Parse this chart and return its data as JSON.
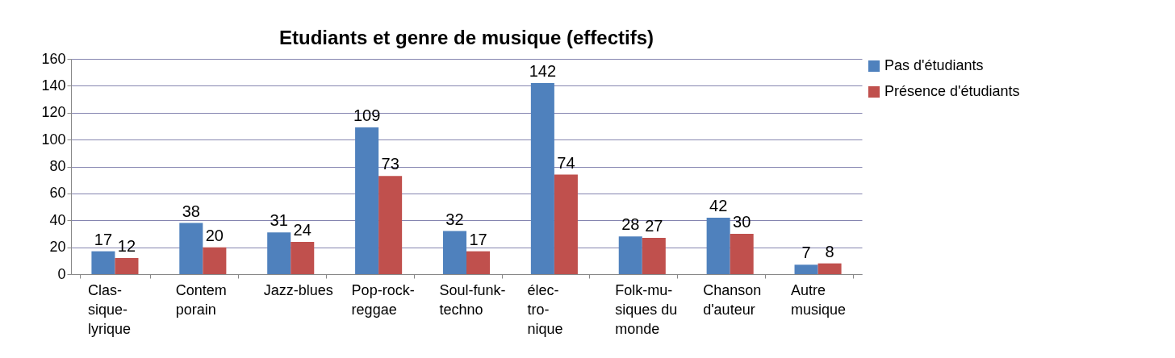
{
  "chart_data": {
    "type": "bar",
    "title": "Etudiants et genre de musique (effectifs)",
    "categories": [
      "Clas-\nsique-\nlyrique",
      "Contem\nporain",
      "Jazz-blues",
      "Pop-rock-\nreggae",
      "Soul-funk-\ntechno",
      "élec-\ntro-\nnique",
      "Folk-mu-\nsiques du\nmonde",
      "Chanson\nd'auteur",
      "Autre\nmusique"
    ],
    "series": [
      {
        "name": "Pas d'étudiants",
        "color": "#4f81bd",
        "values": [
          17,
          38,
          31,
          109,
          32,
          142,
          28,
          42,
          7
        ]
      },
      {
        "name": "Présence d'étudiants",
        "color": "#c0504d",
        "values": [
          12,
          20,
          24,
          73,
          17,
          74,
          27,
          30,
          8
        ]
      }
    ],
    "ylim": [
      0,
      160
    ],
    "yticks": [
      0,
      20,
      40,
      60,
      80,
      100,
      120,
      140,
      160
    ],
    "grid": "y",
    "legend": "right",
    "data_labels": true
  }
}
